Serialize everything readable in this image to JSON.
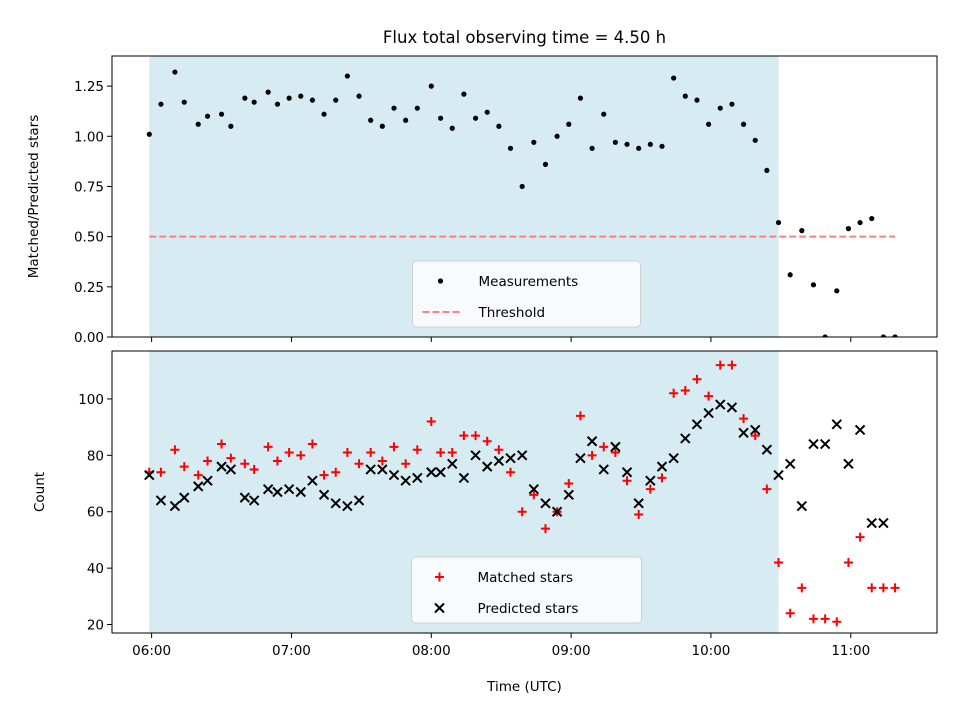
{
  "figure": {
    "title": "Flux total observing time = 4.50 h",
    "xlabel": "Time (UTC)"
  },
  "chart_data": [
    {
      "type": "scatter",
      "ylabel": "Matched/Predicted stars",
      "xlim": [
        "05:43",
        "11:37"
      ],
      "ylim": [
        0,
        1.4
      ],
      "yticks": [
        0.0,
        0.25,
        0.5,
        0.75,
        1.0,
        1.25
      ],
      "ytick_labels": [
        "0.00",
        "0.25",
        "0.50",
        "0.75",
        "1.00",
        "1.25"
      ],
      "shaded_interval": {
        "start": "05:59",
        "end": "10:29",
        "color": "#add8e6"
      },
      "legend": {
        "location": "lower center",
        "entries": [
          "Measurements",
          "Threshold"
        ]
      },
      "series": [
        {
          "name": "Measurements",
          "marker": "dot",
          "color": "#000000",
          "x": [
            "05:59",
            "06:04",
            "06:10",
            "06:14",
            "06:20",
            "06:24",
            "06:30",
            "06:34",
            "06:40",
            "06:44",
            "06:50",
            "06:54",
            "06:59",
            "07:04",
            "07:09",
            "07:14",
            "07:19",
            "07:24",
            "07:29",
            "07:34",
            "07:39",
            "07:44",
            "07:49",
            "07:54",
            "08:00",
            "08:04",
            "08:09",
            "08:14",
            "08:19",
            "08:24",
            "08:29",
            "08:34",
            "08:39",
            "08:44",
            "08:49",
            "08:54",
            "08:59",
            "09:04",
            "09:09",
            "09:14",
            "09:19",
            "09:24",
            "09:29",
            "09:34",
            "09:39",
            "09:44",
            "09:49",
            "09:54",
            "09:59",
            "10:04",
            "10:09",
            "10:14",
            "10:19",
            "10:24",
            "10:29",
            "10:34",
            "10:39",
            "10:44",
            "10:49",
            "10:54",
            "10:59",
            "11:04",
            "11:09",
            "11:14",
            "11:19"
          ],
          "y": [
            1.01,
            1.16,
            1.32,
            1.17,
            1.06,
            1.1,
            1.11,
            1.05,
            1.19,
            1.17,
            1.22,
            1.16,
            1.19,
            1.2,
            1.18,
            1.11,
            1.18,
            1.3,
            1.2,
            1.08,
            1.05,
            1.14,
            1.08,
            1.14,
            1.25,
            1.09,
            1.04,
            1.21,
            1.09,
            1.12,
            1.05,
            0.94,
            0.75,
            0.97,
            0.86,
            1.0,
            1.06,
            1.19,
            0.94,
            1.11,
            0.97,
            0.96,
            0.94,
            0.96,
            0.95,
            1.29,
            1.2,
            1.18,
            1.06,
            1.14,
            1.16,
            1.06,
            0.98,
            0.83,
            0.57,
            0.31,
            0.53,
            0.26,
            0.0,
            0.23,
            0.54,
            0.57,
            0.59,
            0.0,
            0.0
          ]
        },
        {
          "name": "Threshold",
          "style": "dashed",
          "color": "#ff7f7f",
          "x": [
            "05:59",
            "11:19"
          ],
          "y": [
            0.5,
            0.5
          ]
        }
      ]
    },
    {
      "type": "scatter",
      "ylabel": "Count",
      "xlim": [
        "05:43",
        "11:37"
      ],
      "ylim": [
        17,
        117
      ],
      "yticks": [
        20,
        40,
        60,
        80,
        100
      ],
      "ytick_labels": [
        "20",
        "40",
        "60",
        "80",
        "100"
      ],
      "xticks": [
        "06:00",
        "07:00",
        "08:00",
        "09:00",
        "10:00",
        "11:00"
      ],
      "xtick_labels": [
        "06:00",
        "07:00",
        "08:00",
        "09:00",
        "10:00",
        "11:00"
      ],
      "shaded_interval": {
        "start": "05:59",
        "end": "10:29",
        "color": "#add8e6"
      },
      "legend": {
        "location": "lower center",
        "entries": [
          "Matched stars",
          "Predicted stars"
        ]
      },
      "series": [
        {
          "name": "Matched stars",
          "marker": "plus",
          "color": "#ff0000",
          "x": [
            "05:59",
            "06:04",
            "06:10",
            "06:14",
            "06:20",
            "06:24",
            "06:30",
            "06:34",
            "06:40",
            "06:44",
            "06:50",
            "06:54",
            "06:59",
            "07:04",
            "07:09",
            "07:14",
            "07:19",
            "07:24",
            "07:29",
            "07:34",
            "07:39",
            "07:44",
            "07:49",
            "07:54",
            "08:00",
            "08:04",
            "08:09",
            "08:14",
            "08:19",
            "08:24",
            "08:29",
            "08:34",
            "08:39",
            "08:44",
            "08:49",
            "08:54",
            "08:59",
            "09:04",
            "09:09",
            "09:14",
            "09:19",
            "09:24",
            "09:29",
            "09:34",
            "09:39",
            "09:44",
            "09:49",
            "09:54",
            "09:59",
            "10:04",
            "10:09",
            "10:14",
            "10:19",
            "10:24",
            "10:29",
            "10:34",
            "10:39",
            "10:44",
            "10:49",
            "10:54",
            "10:59",
            "11:04",
            "11:09",
            "11:14",
            "11:19"
          ],
          "y": [
            74,
            74,
            82,
            76,
            73,
            78,
            84,
            79,
            77,
            75,
            83,
            78,
            81,
            80,
            84,
            73,
            74,
            81,
            77,
            81,
            78,
            83,
            77,
            82,
            92,
            81,
            81,
            87,
            87,
            85,
            82,
            74,
            60,
            66,
            54,
            60,
            70,
            94,
            80,
            83,
            81,
            71,
            59,
            68,
            72,
            102,
            103,
            107,
            101,
            112,
            112,
            93,
            87,
            68,
            42,
            24,
            33,
            22,
            22,
            21,
            42,
            51,
            33,
            33,
            33
          ]
        },
        {
          "name": "Predicted stars",
          "marker": "x",
          "color": "#000000",
          "x": [
            "05:59",
            "06:04",
            "06:10",
            "06:14",
            "06:20",
            "06:24",
            "06:30",
            "06:34",
            "06:40",
            "06:44",
            "06:50",
            "06:54",
            "06:59",
            "07:04",
            "07:09",
            "07:14",
            "07:19",
            "07:24",
            "07:29",
            "07:34",
            "07:39",
            "07:44",
            "07:49",
            "07:54",
            "08:00",
            "08:04",
            "08:09",
            "08:14",
            "08:19",
            "08:24",
            "08:29",
            "08:34",
            "08:39",
            "08:44",
            "08:49",
            "08:54",
            "08:59",
            "09:04",
            "09:09",
            "09:14",
            "09:19",
            "09:24",
            "09:29",
            "09:34",
            "09:39",
            "09:44",
            "09:49",
            "09:54",
            "09:59",
            "10:04",
            "10:09",
            "10:14",
            "10:19",
            "10:24",
            "10:29",
            "10:34",
            "10:39",
            "10:44",
            "10:49",
            "10:54",
            "10:59",
            "11:04",
            "11:09",
            "11:14"
          ],
          "y": [
            73,
            64,
            62,
            65,
            69,
            71,
            76,
            75,
            65,
            64,
            68,
            67,
            68,
            67,
            71,
            66,
            63,
            62,
            64,
            75,
            75,
            73,
            71,
            72,
            74,
            74,
            77,
            72,
            80,
            76,
            78,
            79,
            80,
            68,
            63,
            60,
            66,
            79,
            85,
            75,
            83,
            74,
            63,
            71,
            76,
            79,
            86,
            91,
            95,
            98,
            97,
            88,
            89,
            82,
            73,
            77,
            62,
            84,
            84,
            91,
            77,
            89,
            56,
            56
          ]
        }
      ]
    }
  ]
}
